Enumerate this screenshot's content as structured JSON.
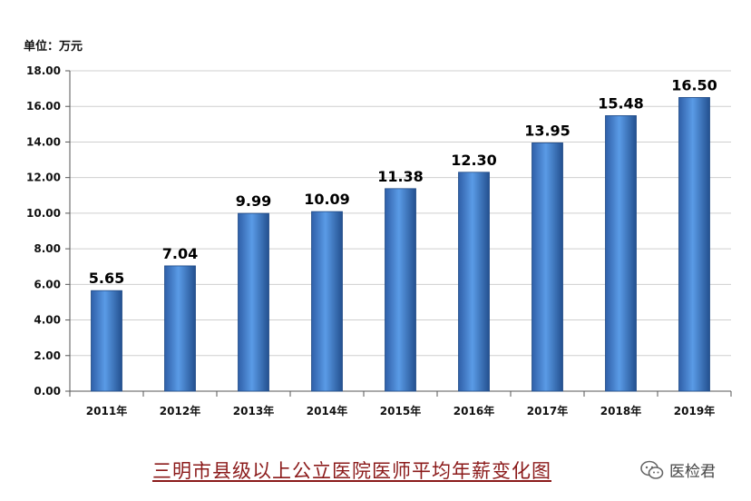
{
  "chart_data": {
    "type": "bar",
    "unit_label": "单位：万元",
    "categories": [
      "2011年",
      "2012年",
      "2013年",
      "2014年",
      "2015年",
      "2016年",
      "2017年",
      "2018年",
      "2019年"
    ],
    "values": [
      5.65,
      7.04,
      9.99,
      10.09,
      11.38,
      12.3,
      13.95,
      15.48,
      16.5
    ],
    "value_labels": [
      "5.65",
      "7.04",
      "9.99",
      "10.09",
      "11.38",
      "12.30",
      "13.95",
      "15.48",
      "16.50"
    ],
    "yticks": [
      "0.00",
      "2.00",
      "4.00",
      "6.00",
      "8.00",
      "10.00",
      "12.00",
      "14.00",
      "16.00",
      "18.00"
    ],
    "ylim": [
      0,
      18
    ],
    "grid": true,
    "bar_color": "#3f7fd0",
    "title": "三明市县级以上公立医院医师平均年薪变化图"
  },
  "watermark": {
    "icon": "wechat-icon",
    "text": "医检君"
  }
}
